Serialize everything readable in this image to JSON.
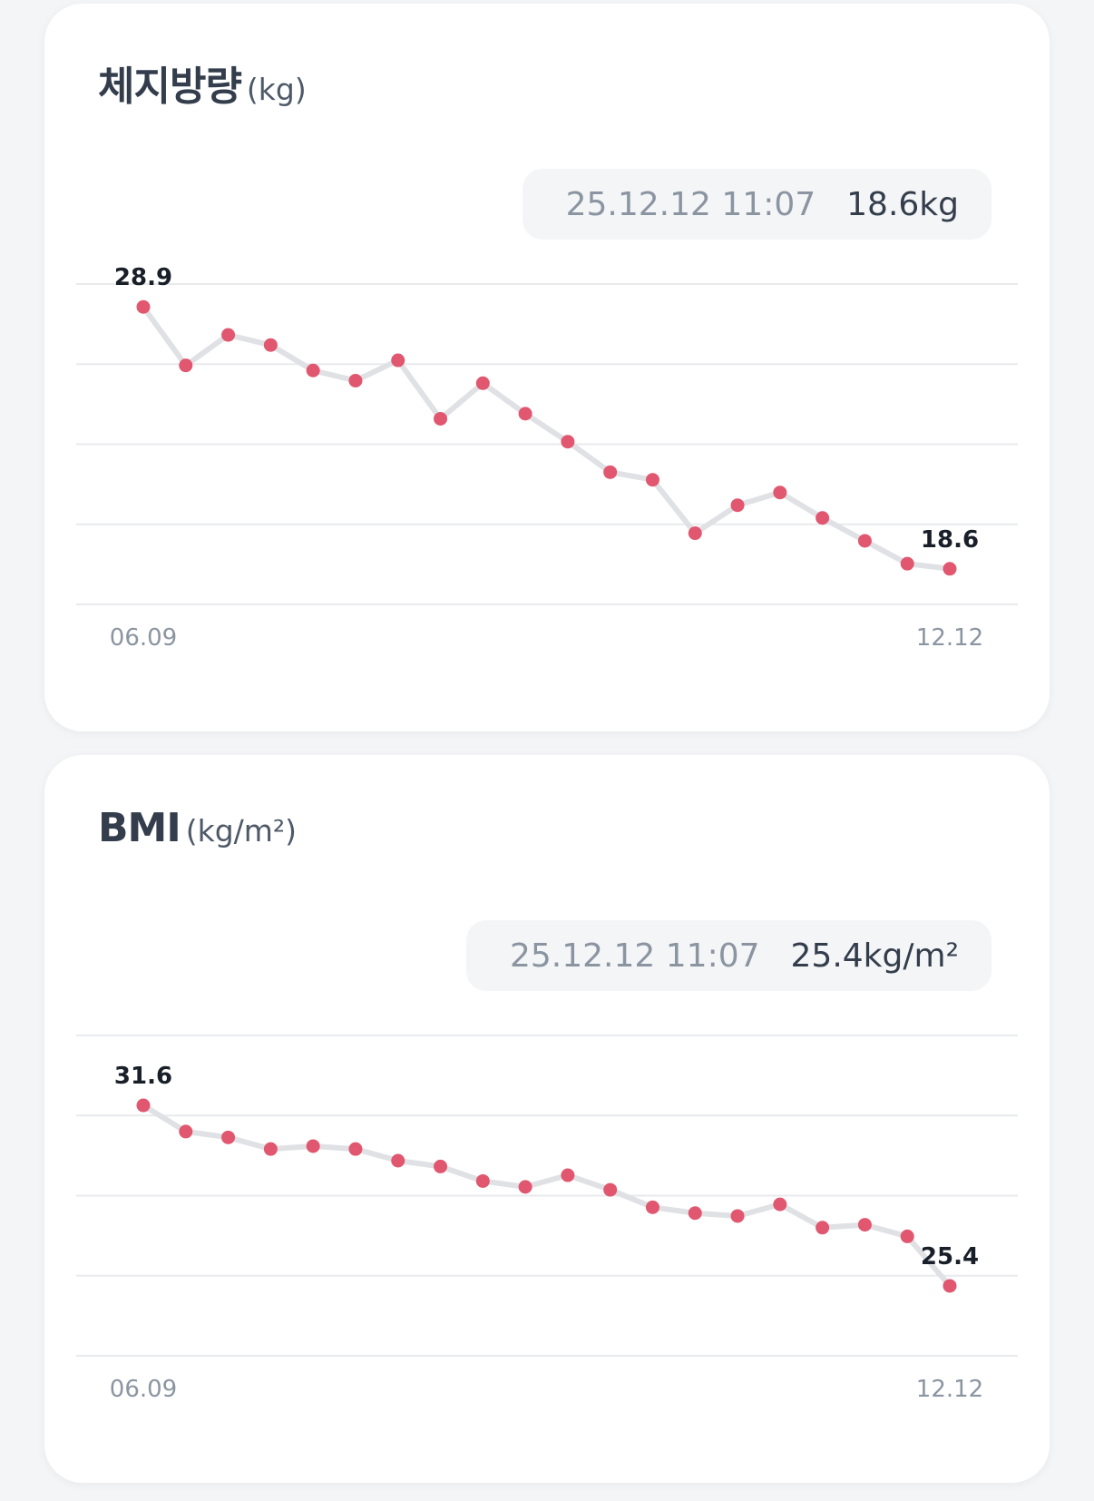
{
  "colors": {
    "point": "#e0576f",
    "line": "#dfe1e5",
    "grid": "#e8eaed",
    "label_dark": "#191f28",
    "axis_text": "#8b95a1"
  },
  "cards": [
    {
      "title": "체지방량",
      "unit": "(kg)",
      "selected_date": "25.12.12 11:07",
      "selected_value": "18.6kg",
      "x_start_label": "06.09",
      "x_end_label": "12.12",
      "first_label": "28.9",
      "last_label": "18.6"
    },
    {
      "title": "BMI",
      "unit": "(kg/m²)",
      "selected_date": "25.12.12 11:07",
      "selected_value": "25.4kg/m²",
      "x_start_label": "06.09",
      "x_end_label": "12.12",
      "first_label": "31.6",
      "last_label": "25.4"
    }
  ],
  "chart_data": [
    {
      "type": "line",
      "title": "체지방량 (kg)",
      "x": [
        "06.09",
        "",
        "",
        "",
        "",
        "",
        "",
        "",
        "",
        "",
        "",
        "",
        "",
        "",
        "",
        "",
        "",
        "",
        "",
        "12.12"
      ],
      "values": [
        28.9,
        26.6,
        27.8,
        27.4,
        26.4,
        26.0,
        26.8,
        24.5,
        25.9,
        24.7,
        23.6,
        22.4,
        22.1,
        20.0,
        21.1,
        21.6,
        20.6,
        19.7,
        18.8,
        18.6
      ],
      "ylim": [
        17.2,
        29.8
      ],
      "grid": true,
      "legend": "none"
    },
    {
      "type": "line",
      "title": "BMI (kg/m²)",
      "x": [
        "06.09",
        "",
        "",
        "",
        "",
        "",
        "",
        "",
        "",
        "",
        "",
        "",
        "",
        "",
        "",
        "",
        "",
        "",
        "",
        "12.12"
      ],
      "values": [
        31.6,
        30.7,
        30.5,
        30.1,
        30.2,
        30.1,
        29.7,
        29.5,
        29.0,
        28.8,
        29.2,
        28.7,
        28.1,
        27.9,
        27.8,
        28.2,
        27.4,
        27.5,
        27.1,
        25.4
      ],
      "ylim": [
        23.0,
        34.0
      ],
      "grid": true,
      "legend": "none"
    }
  ]
}
